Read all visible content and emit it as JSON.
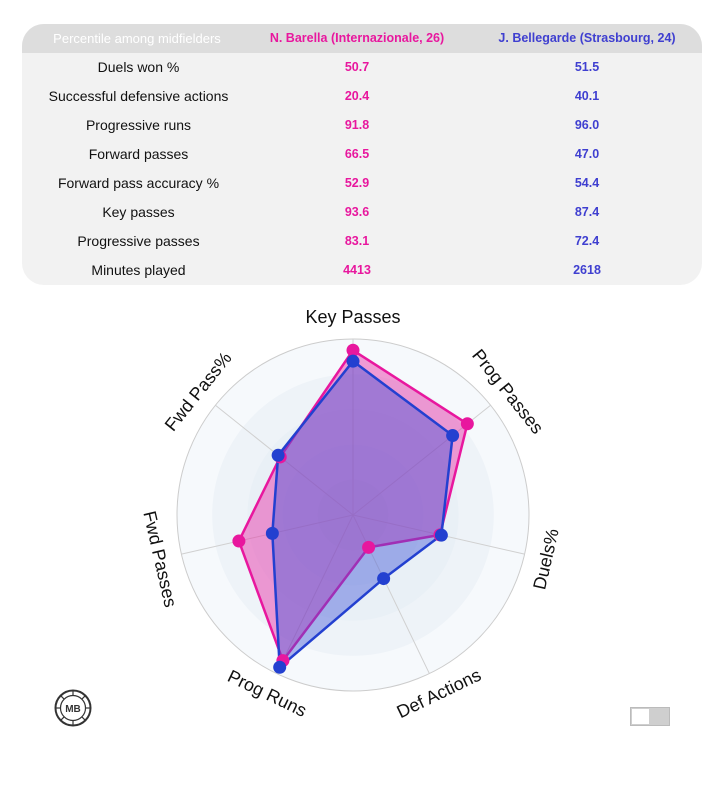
{
  "table": {
    "header": {
      "metric": "Percentile among midfielders",
      "player1": "N. Barella (Internazionale, 26)",
      "player2": "J. Bellegarde (Strasbourg, 24)"
    },
    "rows": [
      {
        "metric": "Duels won %",
        "p1": "50.7",
        "p2": "51.5"
      },
      {
        "metric": "Successful defensive actions",
        "p1": "20.4",
        "p2": "40.1"
      },
      {
        "metric": "Progressive runs",
        "p1": "91.8",
        "p2": "96.0"
      },
      {
        "metric": "Forward passes",
        "p1": "66.5",
        "p2": "47.0"
      },
      {
        "metric": "Forward pass accuracy %",
        "p1": "52.9",
        "p2": "54.4"
      },
      {
        "metric": "Key passes",
        "p1": "93.6",
        "p2": "87.4"
      },
      {
        "metric": "Progressive passes",
        "p1": "83.1",
        "p2": "72.4"
      },
      {
        "metric": "Minutes played",
        "p1": "4413",
        "p2": "2618"
      }
    ]
  },
  "chart_data": {
    "type": "radar",
    "axes": [
      "Key Passes",
      "Prog Passes",
      "Duels%",
      "Def Actions",
      "Prog Runs",
      "Fwd Passes",
      "Fwd Pass%"
    ],
    "range": [
      0,
      100
    ],
    "grid": true,
    "series": [
      {
        "name": "N. Barella (Internazionale, 26)",
        "color": "#e8179e",
        "values": [
          93.6,
          83.1,
          50.7,
          20.4,
          91.8,
          66.5,
          52.9
        ]
      },
      {
        "name": "J. Bellegarde (Strasbourg, 24)",
        "color": "#2340d0",
        "values": [
          87.4,
          72.4,
          51.5,
          40.1,
          96.0,
          47.0,
          54.4
        ]
      }
    ]
  },
  "logo": {
    "text": "MB",
    "icon": "mb-logo-icon"
  }
}
